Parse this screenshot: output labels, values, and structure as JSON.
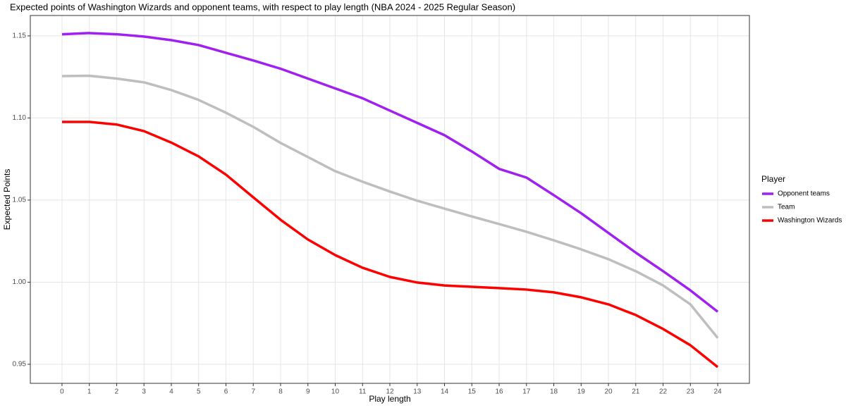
{
  "chart_data": {
    "type": "line",
    "title": "Expected points of Washington Wizards and opponent teams, with respect to play length (NBA 2024 - 2025 Regular Season)",
    "x_label": "Play length",
    "y_label": "Expected Points",
    "legend_title": "Player",
    "x": [
      0,
      1,
      2,
      3,
      4,
      5,
      6,
      7,
      8,
      9,
      10,
      11,
      12,
      13,
      14,
      15,
      16,
      17,
      18,
      19,
      20,
      21,
      22,
      23,
      24
    ],
    "series": [
      {
        "name": "Opponent teams",
        "color": "#a020f0",
        "values": [
          1.151,
          1.1517,
          1.151,
          1.1496,
          1.1474,
          1.1444,
          1.1397,
          1.135,
          1.13,
          1.124,
          1.118,
          1.112,
          1.1045,
          1.097,
          1.0895,
          1.0796,
          1.069,
          1.0637,
          1.053,
          1.042,
          1.03,
          1.018,
          1.0067,
          0.995,
          0.982
        ]
      },
      {
        "name": "Team",
        "color": "#bebebe",
        "values": [
          1.1255,
          1.1257,
          1.124,
          1.1217,
          1.117,
          1.111,
          1.1032,
          1.0946,
          1.0848,
          1.0762,
          1.0676,
          1.0612,
          1.0552,
          1.0496,
          1.0448,
          1.04,
          1.0354,
          1.0307,
          1.0255,
          1.02,
          1.014,
          1.0067,
          0.998,
          0.9865,
          0.966
        ]
      },
      {
        "name": "Washington Wizards",
        "color": "#ff0000",
        "values": [
          1.0976,
          1.0976,
          1.096,
          1.092,
          1.085,
          1.0766,
          1.0655,
          1.0517,
          1.038,
          1.026,
          1.0165,
          1.0088,
          1.0032,
          0.9998,
          0.998,
          0.9972,
          0.9964,
          0.9955,
          0.9938,
          0.9908,
          0.9865,
          0.98,
          0.9715,
          0.9616,
          0.9483
        ]
      }
    ],
    "xlim": [
      -1.16,
      25.16
    ],
    "ylim": [
      0.9384,
      1.1624
    ],
    "xticks": [
      0,
      1,
      2,
      3,
      4,
      5,
      6,
      7,
      8,
      9,
      10,
      11,
      12,
      13,
      14,
      15,
      16,
      17,
      18,
      19,
      20,
      21,
      22,
      23,
      24
    ],
    "yticks": [
      {
        "value": 0.95,
        "label": "0.95"
      },
      {
        "value": 1.0,
        "label": "1.00"
      },
      {
        "value": 1.05,
        "label": "1.05"
      },
      {
        "value": 1.1,
        "label": "1.10"
      },
      {
        "value": 1.15,
        "label": "1.15"
      }
    ],
    "grid": true,
    "legend": "right"
  }
}
